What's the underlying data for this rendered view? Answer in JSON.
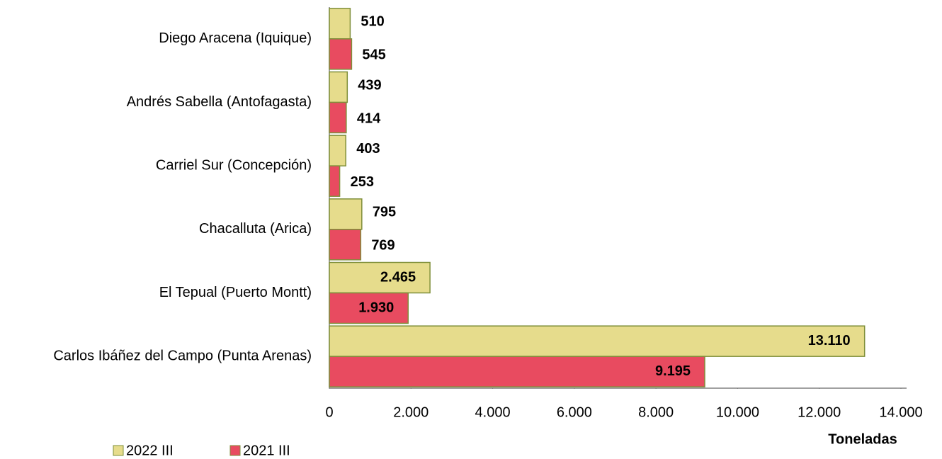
{
  "chart_data": {
    "type": "bar",
    "orientation": "horizontal",
    "categories": [
      "Diego Aracena (Iquique)",
      "Andrés Sabella (Antofagasta)",
      "Carriel Sur (Concepción)",
      "Chacalluta (Arica)",
      "El Tepual (Puerto Montt)",
      "Carlos Ibáñez del Campo (Punta Arenas)"
    ],
    "series": [
      {
        "name": "2022 III",
        "color": "#e6dc8c",
        "values": [
          510,
          439,
          403,
          795,
          2465,
          13110
        ],
        "value_labels": [
          "510",
          "439",
          "403",
          "795",
          "2.465",
          "13.110"
        ]
      },
      {
        "name": "2021 III",
        "color": "#e84b60",
        "values": [
          545,
          414,
          253,
          769,
          1930,
          9195
        ],
        "value_labels": [
          "545",
          "414",
          "253",
          "769",
          "1.930",
          "9.195"
        ]
      }
    ],
    "xlabel": "Toneladas",
    "xlim": [
      0,
      14000
    ],
    "xticks": [
      0,
      {
        "value": 2000,
        "label": "2.000"
      },
      {
        "value": 4000,
        "label": "4.000"
      },
      {
        "value": 6000,
        "label": "6.000"
      },
      {
        "value": 8000,
        "label": "8.000"
      },
      {
        "value": 10000,
        "label": "10.000"
      },
      {
        "value": 12000,
        "label": "12.000"
      },
      {
        "value": 14000,
        "label": "14.000"
      }
    ],
    "legend": "bottom-left"
  }
}
